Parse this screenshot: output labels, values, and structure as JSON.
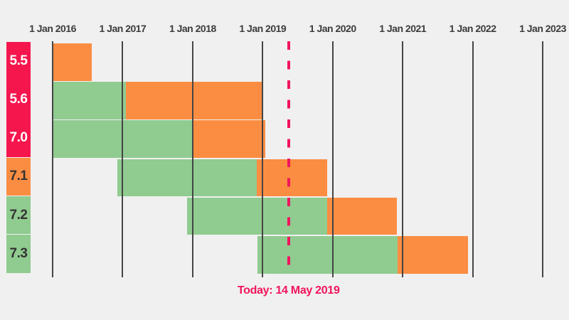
{
  "colors": {
    "background": "#f0f0f0",
    "grid": "#454545",
    "axis_text": "#3b3b3b",
    "today": "#f2145c",
    "label_text_light": "#ffffff",
    "label_text_dark": "#333333"
  },
  "chart_data": {
    "type": "bar",
    "subtype": "gantt-timeline",
    "title": "",
    "xlabel": "",
    "ylabel": "",
    "xlim": [
      2016,
      2023
    ],
    "grid": true,
    "legend": "none",
    "x_ticks": [
      {
        "label": "1 Jan 2016",
        "year": 2016
      },
      {
        "label": "1 Jan 2017",
        "year": 2017
      },
      {
        "label": "1 Jan 2018",
        "year": 2018
      },
      {
        "label": "1 Jan 2019",
        "year": 2019
      },
      {
        "label": "1 Jan 2020",
        "year": 2020
      },
      {
        "label": "1 Jan 2021",
        "year": 2021
      },
      {
        "label": "1 Jan 2022",
        "year": 2022
      },
      {
        "label": "1 Jan 2023",
        "year": 2023
      }
    ],
    "categories": [
      "5.5",
      "5.6",
      "7.0",
      "7.1",
      "7.2",
      "7.3"
    ],
    "status_colors": {
      "active": "#90cb90",
      "security": "#fb8d42",
      "eol": "#f6164e"
    },
    "series": [
      {
        "name": "5.5",
        "label_status": "eol",
        "segments": [
          {
            "status": "security",
            "start": 2016.0,
            "end": 2016.56
          }
        ]
      },
      {
        "name": "5.6",
        "label_status": "eol",
        "segments": [
          {
            "status": "active",
            "start": 2016.0,
            "end": 2017.05
          },
          {
            "status": "security",
            "start": 2017.05,
            "end": 2019.0
          }
        ]
      },
      {
        "name": "7.0",
        "label_status": "eol",
        "segments": [
          {
            "status": "active",
            "start": 2016.0,
            "end": 2018.0
          },
          {
            "status": "security",
            "start": 2018.0,
            "end": 2019.04
          }
        ]
      },
      {
        "name": "7.1",
        "label_status": "security",
        "segments": [
          {
            "status": "active",
            "start": 2016.92,
            "end": 2018.92
          },
          {
            "status": "security",
            "start": 2018.92,
            "end": 2019.92
          }
        ]
      },
      {
        "name": "7.2",
        "label_status": "active",
        "segments": [
          {
            "status": "active",
            "start": 2017.92,
            "end": 2019.92
          },
          {
            "status": "security",
            "start": 2019.92,
            "end": 2020.92
          }
        ]
      },
      {
        "name": "7.3",
        "label_status": "active",
        "segments": [
          {
            "status": "active",
            "start": 2018.93,
            "end": 2020.93
          },
          {
            "status": "security",
            "start": 2020.93,
            "end": 2021.93
          }
        ]
      }
    ],
    "today_marker": {
      "label": "Today: 14 May 2019",
      "year": 2019.37
    }
  }
}
